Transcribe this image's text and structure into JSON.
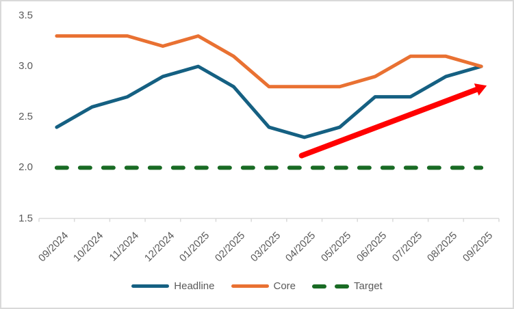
{
  "chart_data": {
    "type": "line",
    "title": "",
    "xlabel": "",
    "ylabel": "",
    "categories": [
      "09/2024",
      "10/2024",
      "11/2024",
      "12/2024",
      "01/2025",
      "02/2025",
      "03/2025",
      "04/2025",
      "05/2025",
      "06/2025",
      "07/2025",
      "08/2025",
      "09/2025"
    ],
    "series": [
      {
        "name": "Headline",
        "color": "#156082",
        "style": "solid",
        "values": [
          2.4,
          2.6,
          2.7,
          2.9,
          3.0,
          2.8,
          2.4,
          2.3,
          2.4,
          2.7,
          2.7,
          2.9,
          3.0
        ]
      },
      {
        "name": "Core",
        "color": "#E97132",
        "style": "solid",
        "values": [
          3.3,
          3.3,
          3.3,
          3.2,
          3.3,
          3.1,
          2.8,
          2.8,
          2.8,
          2.9,
          3.1,
          3.1,
          3.0
        ]
      },
      {
        "name": "Target",
        "color": "#196B24",
        "style": "dashed",
        "values": [
          2.0,
          2.0,
          2.0,
          2.0,
          2.0,
          2.0,
          2.0,
          2.0,
          2.0,
          2.0,
          2.0,
          2.0,
          2.0
        ]
      }
    ],
    "y_ticks": [
      "3.5",
      "3.0",
      "2.5",
      "2.0",
      "1.5"
    ],
    "ylim": [
      1.5,
      3.5
    ],
    "grid": false,
    "legend_position": "bottom",
    "annotation": {
      "type": "arrow",
      "color": "#FF0000",
      "from": {
        "category": "04/2025",
        "value": 2.12
      },
      "to": {
        "category": "09/2025",
        "value": 2.81
      }
    }
  },
  "colors": {
    "axis_text": "#595959",
    "axis_line": "#D9D9D9",
    "frame_border": "#D9D9D9",
    "background": "#FFFFFF"
  }
}
